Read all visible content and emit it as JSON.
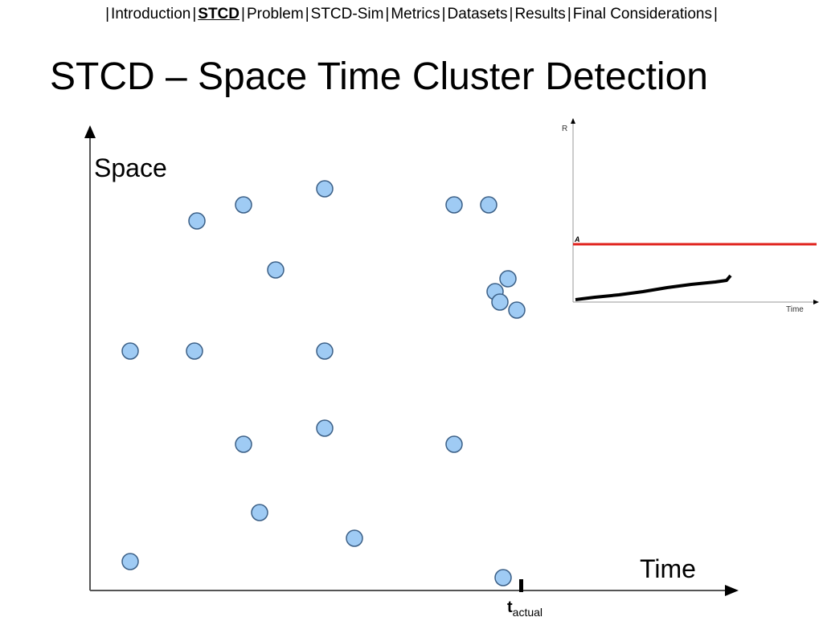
{
  "nav": {
    "separator": "|",
    "items": [
      "Introduction",
      "STCD",
      "Problem",
      "STCD-Sim",
      "Metrics",
      "Datasets",
      "Results",
      "Final Considerations"
    ],
    "active": 1
  },
  "title": "STCD – Space Time Cluster Detection",
  "diagram": {
    "y_label": "Space",
    "x_label": "Time",
    "marker_label": "t",
    "marker_subscript": "actual"
  },
  "inset": {
    "y_label": "R",
    "x_label": "Time",
    "threshold_label": "A"
  }
}
